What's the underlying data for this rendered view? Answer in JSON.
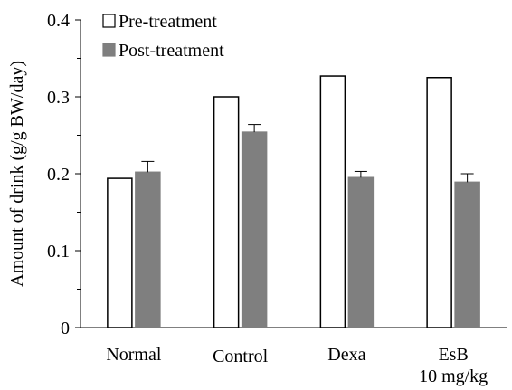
{
  "chart_data": {
    "type": "bar",
    "title": "",
    "xlabel": "",
    "ylabel": "Amount of drink (g/g BW/day)",
    "ylim": [
      0,
      0.4
    ],
    "yticks": [
      "0",
      "0.1",
      "0.2",
      "0.3",
      "0.4"
    ],
    "categories": [
      [
        "Normal"
      ],
      [
        "Control"
      ],
      [
        "Dexa"
      ],
      [
        "EsB",
        "10 mg/kg"
      ]
    ],
    "series": [
      {
        "name": "Pre-treatment",
        "values": [
          0.194,
          0.3,
          0.327,
          0.325
        ],
        "errors": [
          0,
          0,
          0,
          0
        ],
        "fill": "#ffffff",
        "stroke": "#000000"
      },
      {
        "name": "Post-treatment",
        "values": [
          0.202,
          0.254,
          0.195,
          0.189
        ],
        "errors": [
          0.014,
          0.01,
          0.008,
          0.011
        ],
        "fill": "#7f7f7f",
        "stroke": "#7f7f7f"
      }
    ],
    "legend_position": "top-left",
    "grid": false
  }
}
